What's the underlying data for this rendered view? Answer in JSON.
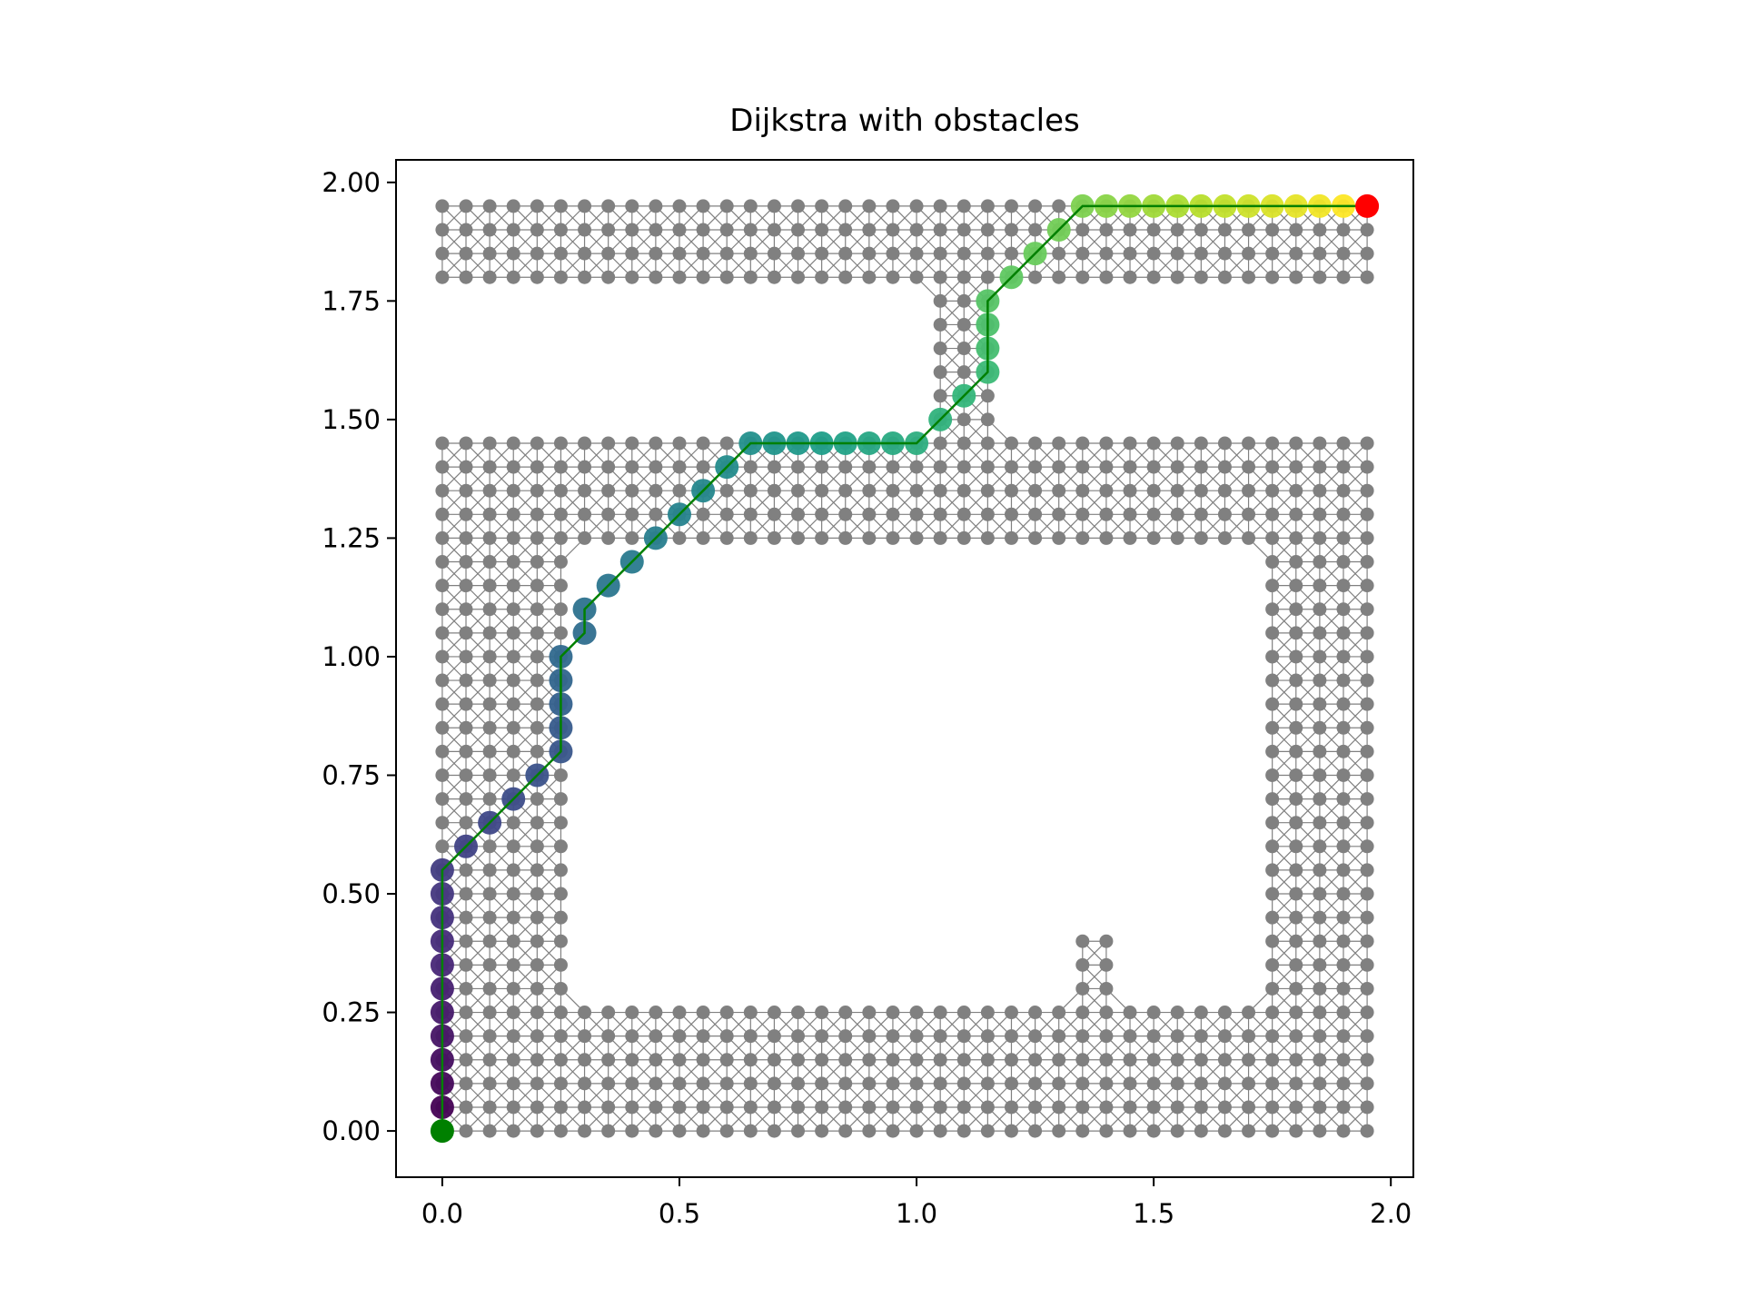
{
  "chart_data": {
    "type": "scatter",
    "title": "Dijkstra with obstacles",
    "xlabel": "",
    "ylabel": "",
    "xlim": [
      -0.0975,
      2.0475
    ],
    "ylim": [
      -0.0975,
      2.0475
    ],
    "x_ticks": [
      "0.0",
      "0.5",
      "1.0",
      "1.5",
      "2.0"
    ],
    "x_tick_values": [
      0.0,
      0.5,
      1.0,
      1.5,
      2.0
    ],
    "y_ticks": [
      "0.00",
      "0.25",
      "0.50",
      "0.75",
      "1.00",
      "1.25",
      "1.50",
      "1.75",
      "2.00"
    ],
    "y_tick_values": [
      0.0,
      0.25,
      0.5,
      0.75,
      1.0,
      1.25,
      1.5,
      1.75,
      2.0
    ],
    "grid": false,
    "legend": "none",
    "graph": {
      "grid_spacing": 0.05,
      "x_range": [
        0.0,
        1.95
      ],
      "y_range": [
        0.0,
        1.95
      ],
      "node_color": "#808080",
      "edge_color": "#808080",
      "connectivity": "8-neighbour",
      "free_regions": [
        {
          "shape": "rect",
          "x": [
            0.0,
            1.95
          ],
          "y": [
            1.8,
            1.95
          ]
        },
        {
          "shape": "rect",
          "x": [
            1.05,
            1.15
          ],
          "y": [
            1.45,
            1.8
          ]
        },
        {
          "shape": "rect",
          "x": [
            0.0,
            1.95
          ],
          "y": [
            0.0,
            1.45
          ]
        }
      ],
      "obstacles": [
        {
          "shape": "rect",
          "x": [
            0.3,
            1.7
          ],
          "y": [
            0.5,
            0.95
          ]
        },
        {
          "shape": "rect",
          "x": [
            0.3,
            0.65
          ],
          "y": [
            0.45,
            1.2
          ]
        },
        {
          "shape": "rect",
          "x": [
            1.35,
            1.7
          ],
          "y": [
            0.45,
            1.2
          ]
        },
        {
          "shape": "rect",
          "x": [
            0.55,
            1.3
          ],
          "y": [
            0.85,
            1.2
          ]
        },
        {
          "shape": "rect",
          "x": [
            0.3,
            0.45
          ],
          "y": [
            0.3,
            0.6
          ]
        },
        {
          "shape": "rect",
          "x": [
            0.45,
            1.3
          ],
          "y": [
            0.3,
            0.45
          ]
        },
        {
          "shape": "rect",
          "x": [
            1.45,
            1.7
          ],
          "y": [
            0.3,
            0.45
          ]
        }
      ]
    },
    "path": {
      "line_color": "#008000",
      "colormap": "viridis",
      "nodes": [
        [
          0.0,
          0.05
        ],
        [
          0.0,
          0.1
        ],
        [
          0.0,
          0.15
        ],
        [
          0.0,
          0.2
        ],
        [
          0.0,
          0.25
        ],
        [
          0.0,
          0.3
        ],
        [
          0.0,
          0.35
        ],
        [
          0.0,
          0.4
        ],
        [
          0.0,
          0.45
        ],
        [
          0.0,
          0.5
        ],
        [
          0.0,
          0.55
        ],
        [
          0.05,
          0.6
        ],
        [
          0.1,
          0.65
        ],
        [
          0.15,
          0.7
        ],
        [
          0.2,
          0.75
        ],
        [
          0.25,
          0.8
        ],
        [
          0.25,
          0.85
        ],
        [
          0.25,
          0.9
        ],
        [
          0.25,
          0.95
        ],
        [
          0.25,
          1.0
        ],
        [
          0.3,
          1.05
        ],
        [
          0.3,
          1.1
        ],
        [
          0.35,
          1.15
        ],
        [
          0.4,
          1.2
        ],
        [
          0.45,
          1.25
        ],
        [
          0.5,
          1.3
        ],
        [
          0.55,
          1.35
        ],
        [
          0.6,
          1.4
        ],
        [
          0.65,
          1.45
        ],
        [
          0.7,
          1.45
        ],
        [
          0.75,
          1.45
        ],
        [
          0.8,
          1.45
        ],
        [
          0.85,
          1.45
        ],
        [
          0.9,
          1.45
        ],
        [
          0.95,
          1.45
        ],
        [
          1.0,
          1.45
        ],
        [
          1.05,
          1.5
        ],
        [
          1.1,
          1.55
        ],
        [
          1.15,
          1.6
        ],
        [
          1.15,
          1.65
        ],
        [
          1.15,
          1.7
        ],
        [
          1.15,
          1.75
        ],
        [
          1.2,
          1.8
        ],
        [
          1.25,
          1.85
        ],
        [
          1.3,
          1.9
        ],
        [
          1.35,
          1.95
        ],
        [
          1.4,
          1.95
        ],
        [
          1.45,
          1.95
        ],
        [
          1.5,
          1.95
        ],
        [
          1.55,
          1.95
        ],
        [
          1.6,
          1.95
        ],
        [
          1.65,
          1.95
        ],
        [
          1.7,
          1.95
        ],
        [
          1.75,
          1.95
        ],
        [
          1.8,
          1.95
        ],
        [
          1.85,
          1.95
        ],
        [
          1.9,
          1.95
        ]
      ]
    },
    "start": {
      "x": 0.0,
      "y": 0.0,
      "color": "#008000"
    },
    "goal": {
      "x": 1.95,
      "y": 1.95,
      "color": "#ff0000"
    }
  }
}
